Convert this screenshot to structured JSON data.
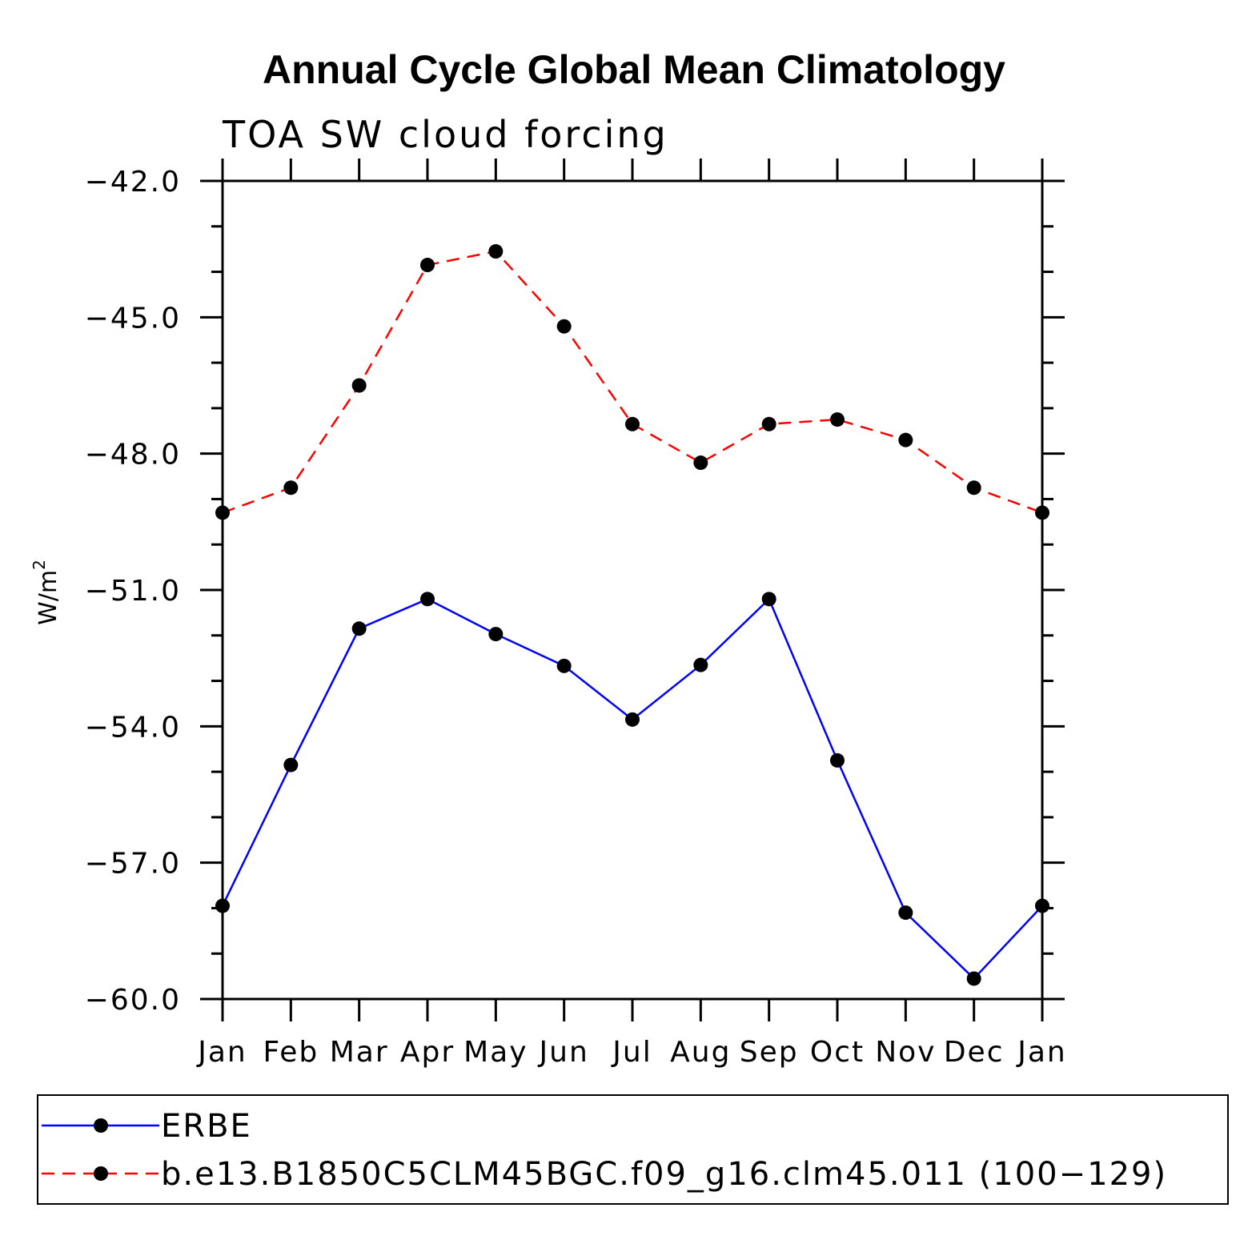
{
  "chart_data": {
    "type": "line",
    "title": "Annual Cycle Global Mean Climatology",
    "subtitle": "TOA SW cloud forcing",
    "ylabel": "W/m",
    "ylabel_sup": "2",
    "xlabel": "",
    "categories": [
      "Jan",
      "Feb",
      "Mar",
      "Apr",
      "May",
      "Jun",
      "Jul",
      "Aug",
      "Sep",
      "Oct",
      "Nov",
      "Dec",
      "Jan"
    ],
    "ylim": [
      -60.0,
      -42.0
    ],
    "yticks": [
      -42.0,
      -45.0,
      -48.0,
      -51.0,
      -54.0,
      -57.0,
      -60.0
    ],
    "ytick_labels": [
      "−42.0",
      "−45.0",
      "−48.0",
      "−51.0",
      "−54.0",
      "−57.0",
      "−60.0"
    ],
    "grid": false,
    "legend_position": "bottom",
    "series": [
      {
        "name": "ERBE",
        "color": "#0000ff",
        "style": "solid",
        "values": [
          -57.95,
          -54.85,
          -51.85,
          -51.2,
          -51.97,
          -52.67,
          -53.85,
          -52.65,
          -51.2,
          -54.75,
          -58.1,
          -59.55,
          -57.95
        ]
      },
      {
        "name": "b.e13.B1850C5CLM45BGC.f09_g16.clm45.011 (100−129)",
        "color": "#ff0000",
        "style": "dashed",
        "values": [
          -49.3,
          -48.75,
          -46.5,
          -43.85,
          -43.55,
          -45.2,
          -47.35,
          -48.2,
          -47.35,
          -47.25,
          -47.7,
          -48.75,
          -49.3
        ]
      }
    ]
  }
}
